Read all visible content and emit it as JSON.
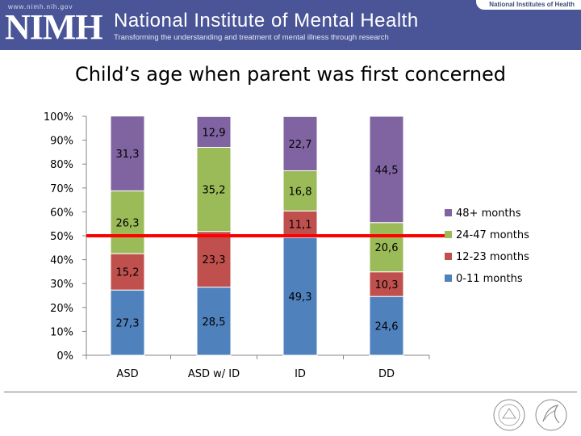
{
  "header": {
    "site_url": "www.nimh.nih.gov",
    "logo_text": "NIMH",
    "institute_name": "National Institute of Mental Health",
    "tagline": "Transforming the understanding and treatment of mental illness through research",
    "nih_badge": "National Institutes of Health",
    "colors": {
      "banner": "#4a5597"
    }
  },
  "chart_data": {
    "type": "stacked-bar-100",
    "title": "Child’s age when parent was first concerned",
    "categories": [
      "ASD",
      "ASD w/ ID",
      "ID",
      "DD"
    ],
    "series": [
      {
        "name": "0-11 months",
        "color": "#4f81bd",
        "values": [
          27.3,
          28.5,
          49.3,
          24.6
        ],
        "labels": [
          "27,3",
          "28,5",
          "49,3",
          "24,6"
        ]
      },
      {
        "name": "12-23 months",
        "color": "#c0504d",
        "values": [
          15.2,
          23.3,
          11.1,
          10.3
        ],
        "labels": [
          "15,2",
          "23,3",
          "11,1",
          "10,3"
        ]
      },
      {
        "name": "24-47 months",
        "color": "#9bbb59",
        "values": [
          26.3,
          35.2,
          16.8,
          20.6
        ],
        "labels": [
          "26,3",
          "35,2",
          "16,8",
          "20,6"
        ]
      },
      {
        "name": "48+ months",
        "color": "#8064a2",
        "values": [
          31.3,
          12.9,
          22.7,
          44.5
        ],
        "labels": [
          "31,3",
          "12,9",
          "22,7",
          "44,5"
        ]
      }
    ],
    "y_ticks": [
      "0%",
      "10%",
      "20%",
      "30%",
      "40%",
      "50%",
      "60%",
      "70%",
      "80%",
      "90%",
      "100%"
    ],
    "ylim": [
      0,
      100
    ],
    "reference_line": {
      "y": 50,
      "color": "#ff0000"
    },
    "legend_order": [
      "48+ months",
      "24-47 months",
      "12-23 months",
      "0-11 months"
    ],
    "legend_position": "right",
    "grid": false
  }
}
